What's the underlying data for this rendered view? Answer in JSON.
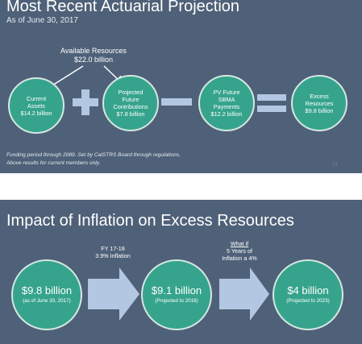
{
  "slide1": {
    "title": "Most Recent Actuarial Projection",
    "subtitle": "As of June 30, 2017",
    "available": {
      "label": "Available Resources",
      "value": "$22.0 billion"
    },
    "circles": [
      {
        "lines": [
          "Current",
          "Assets",
          "$14.2 billion"
        ]
      },
      {
        "lines": [
          "Projected",
          "Future",
          "Contributions",
          "$7.8 billion"
        ]
      },
      {
        "lines": [
          "PV Future",
          "SBMA",
          "Payments",
          "$12.2 billion"
        ]
      },
      {
        "lines": [
          "Excess",
          "Resources",
          "$9.8 billion"
        ]
      }
    ],
    "footnote_1": "Funding period through 2089.  Set by CalSTRS Board through regulations.",
    "footnote_2": "Above results for current members only.",
    "page_number": "14"
  },
  "slide2": {
    "title": "Impact of Inflation on Excess Resources",
    "note_1": {
      "line1": "FY 17-18",
      "line2": "3.9% Inflation"
    },
    "note_2": {
      "what_if": "What if",
      "line2": "5 Years of",
      "line3": "Inflation a 4%"
    },
    "circles": [
      {
        "value": "$9.8 billion",
        "caption": "(as of June 30, 2017)"
      },
      {
        "value": "$9.1 billion",
        "caption": "(Projected to 2018)"
      },
      {
        "value": "$4 billion",
        "caption": "(Projected to 2023)"
      }
    ]
  },
  "colors": {
    "background": "#4f6178",
    "circle_fill": "#36a48c",
    "operator": "#b4c7e2",
    "arrow": "#b4c7e2"
  }
}
